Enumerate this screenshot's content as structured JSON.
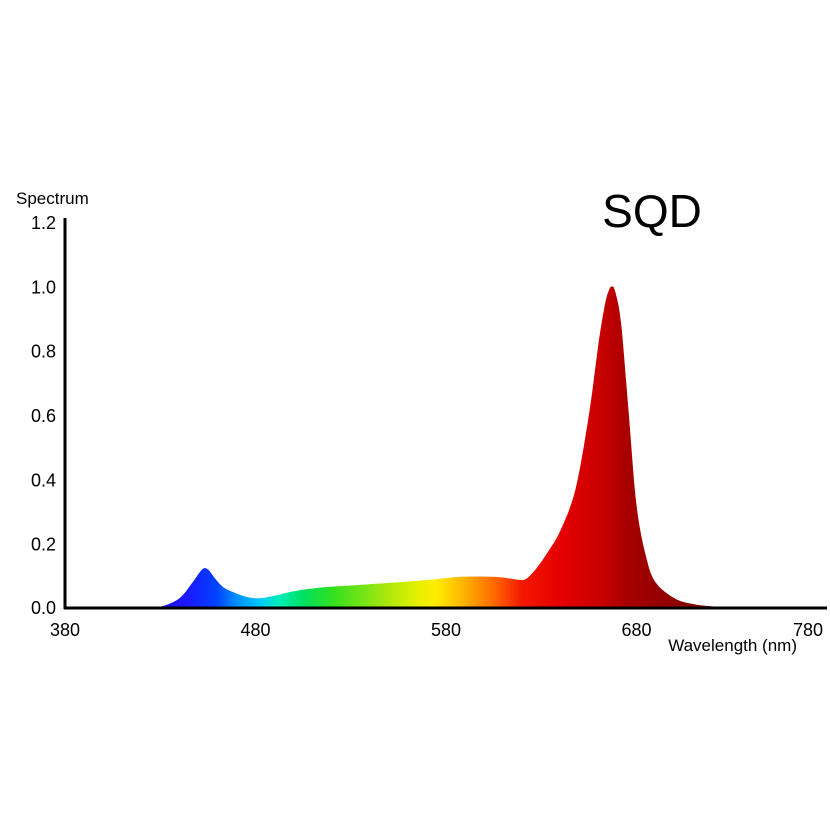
{
  "chart_data": {
    "type": "area",
    "title": "SQD",
    "xlabel": "Wavelength (nm)",
    "ylabel": "Spectrum",
    "xlim": [
      380,
      780
    ],
    "ylim": [
      0,
      1.2
    ],
    "x_ticks": [
      380,
      480,
      580,
      680,
      780
    ],
    "y_ticks": [
      "0.0",
      "0.2",
      "0.4",
      "0.6",
      "0.8",
      "1.0",
      "1.2"
    ],
    "y_tick_values": [
      0,
      0.2,
      0.4,
      0.6,
      0.8,
      1.0,
      1.2
    ],
    "grid": false,
    "legend": "none",
    "fill": "visible-spectrum gradient",
    "series": [
      {
        "x": [
          420,
          430,
          440,
          447,
          452,
          455,
          459,
          463,
          468,
          475,
          482,
          490,
          500,
          515,
          530,
          550,
          570,
          585,
          595,
          605,
          612,
          618,
          622,
          627,
          633,
          640,
          648,
          655,
          660,
          663,
          665,
          667,
          669,
          672,
          676,
          680,
          685,
          690,
          700,
          710,
          720,
          732
        ],
        "y": [
          0,
          0.004,
          0.03,
          0.08,
          0.12,
          0.12,
          0.09,
          0.065,
          0.05,
          0.035,
          0.03,
          0.038,
          0.052,
          0.064,
          0.07,
          0.078,
          0.087,
          0.096,
          0.098,
          0.097,
          0.093,
          0.088,
          0.09,
          0.12,
          0.17,
          0.24,
          0.37,
          0.6,
          0.82,
          0.93,
          0.98,
          1.0,
          0.98,
          0.88,
          0.6,
          0.32,
          0.16,
          0.08,
          0.03,
          0.012,
          0.005,
          0
        ]
      }
    ]
  }
}
